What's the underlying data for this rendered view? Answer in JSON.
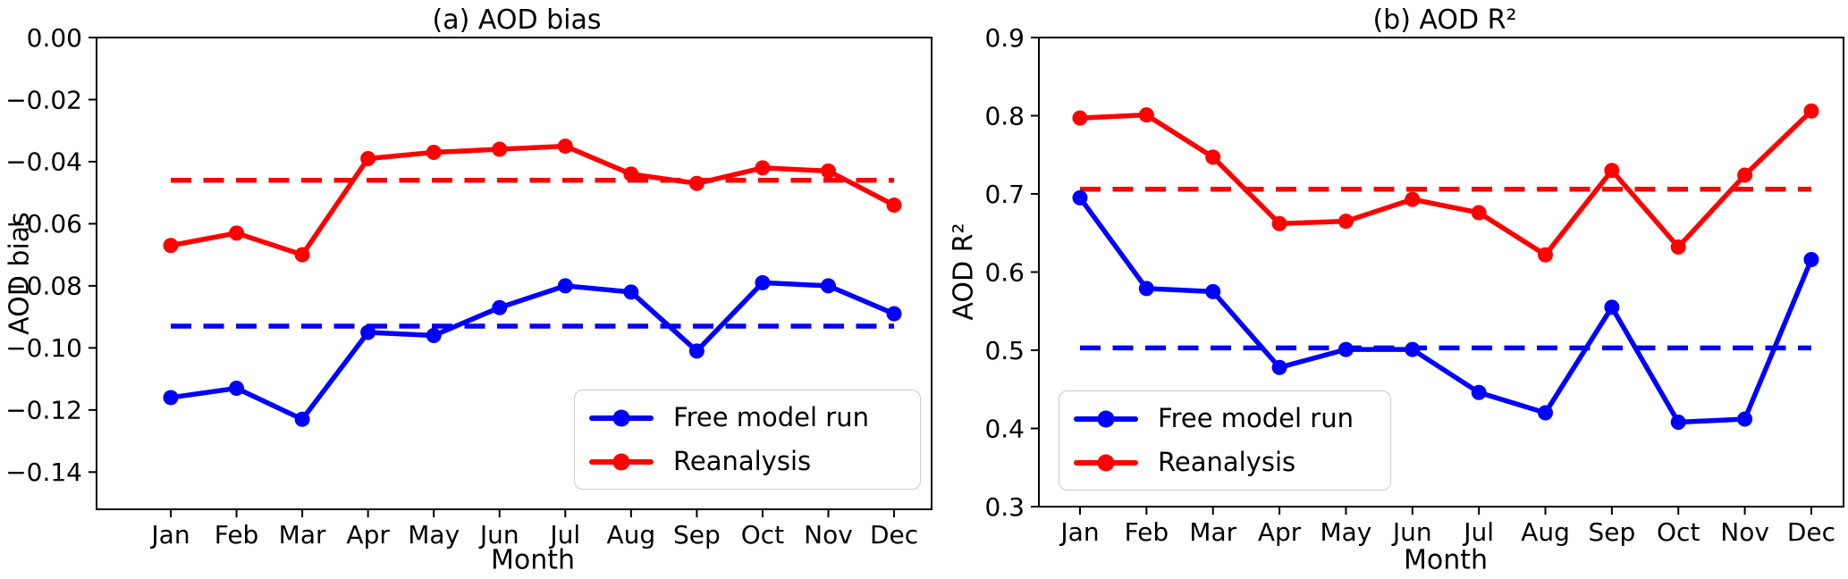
{
  "chart_data": [
    {
      "type": "line",
      "panel": "a",
      "title": "(a) AOD bias",
      "xlabel": "Month",
      "ylabel": "AOD bias",
      "categories": [
        "Jan",
        "Feb",
        "Mar",
        "Apr",
        "May",
        "Jun",
        "Jul",
        "Aug",
        "Sep",
        "Oct",
        "Nov",
        "Dec"
      ],
      "ylim": [
        -0.152,
        0.0
      ],
      "yticks": [
        0.0,
        -0.02,
        -0.04,
        -0.06,
        -0.08,
        -0.1,
        -0.12,
        -0.14
      ],
      "ytick_labels": [
        "0.00",
        "−0.02",
        "−0.04",
        "−0.06",
        "−0.08",
        "−0.10",
        "−0.12",
        "−0.14"
      ],
      "grid": false,
      "legend_position": "lower right",
      "series": [
        {
          "name": "Free model run",
          "color": "#0000ff",
          "line": "solid",
          "marker": "circle",
          "values": [
            -0.116,
            -0.113,
            -0.123,
            -0.095,
            -0.096,
            -0.087,
            -0.08,
            -0.082,
            -0.101,
            -0.079,
            -0.08,
            -0.089
          ]
        },
        {
          "name": "Reanalysis",
          "color": "#ff0000",
          "line": "solid",
          "marker": "circle",
          "values": [
            -0.067,
            -0.063,
            -0.07,
            -0.039,
            -0.037,
            -0.036,
            -0.035,
            -0.044,
            -0.047,
            -0.042,
            -0.043,
            -0.054
          ]
        }
      ],
      "mean_lines": [
        {
          "series": "Free model run",
          "color": "#0000ff",
          "line": "dashed",
          "value": -0.093
        },
        {
          "series": "Reanalysis",
          "color": "#ff0000",
          "line": "dashed",
          "value": -0.046
        }
      ]
    },
    {
      "type": "line",
      "panel": "b",
      "title": "(b) AOD R²",
      "xlabel": "Month",
      "ylabel": "AOD R²",
      "categories": [
        "Jan",
        "Feb",
        "Mar",
        "Apr",
        "May",
        "Jun",
        "Jul",
        "Aug",
        "Sep",
        "Oct",
        "Nov",
        "Dec"
      ],
      "ylim": [
        0.3,
        0.9
      ],
      "yticks": [
        0.9,
        0.8,
        0.7,
        0.6,
        0.5,
        0.4,
        0.3
      ],
      "ytick_labels": [
        "0.9",
        "0.8",
        "0.7",
        "0.6",
        "0.5",
        "0.4",
        "0.3"
      ],
      "grid": false,
      "legend_position": "lower left",
      "series": [
        {
          "name": "Free model run",
          "color": "#0000ff",
          "line": "solid",
          "marker": "circle",
          "values": [
            0.695,
            0.579,
            0.575,
            0.478,
            0.501,
            0.501,
            0.446,
            0.42,
            0.555,
            0.408,
            0.412,
            0.616
          ]
        },
        {
          "name": "Reanalysis",
          "color": "#ff0000",
          "line": "solid",
          "marker": "circle",
          "values": [
            0.797,
            0.801,
            0.747,
            0.662,
            0.665,
            0.693,
            0.676,
            0.622,
            0.73,
            0.632,
            0.724,
            0.806
          ]
        }
      ],
      "mean_lines": [
        {
          "series": "Free model run",
          "color": "#0000ff",
          "line": "dashed",
          "value": 0.503
        },
        {
          "series": "Reanalysis",
          "color": "#ff0000",
          "line": "dashed",
          "value": 0.706
        }
      ]
    }
  ],
  "colors": {
    "free_model_run": "#0000ff",
    "reanalysis": "#ff0000",
    "axis": "#000000"
  }
}
